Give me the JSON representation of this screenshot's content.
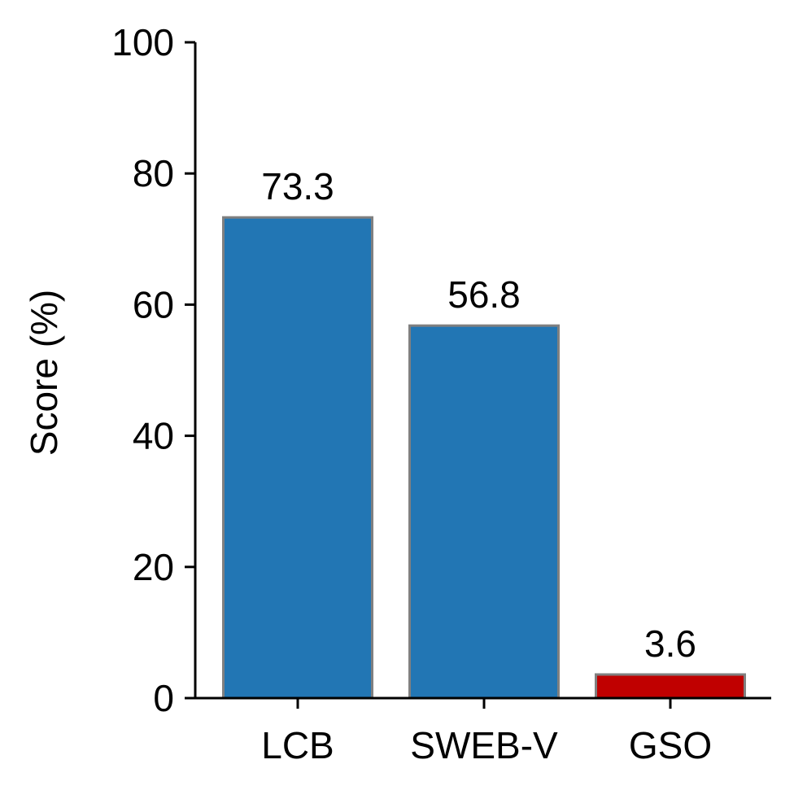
{
  "chart_data": {
    "type": "bar",
    "title": "",
    "xlabel": "",
    "ylabel": "Score (%)",
    "categories": [
      "LCB",
      "SWEB-V",
      "GSO"
    ],
    "values": [
      73.3,
      56.8,
      3.6
    ],
    "data_labels": [
      "73.3",
      "56.8",
      "3.6"
    ],
    "bar_colors": [
      "#2276b4",
      "#2276b4",
      "#c00000"
    ],
    "bar_edge_color": "#808080",
    "ylim": [
      0,
      100
    ],
    "yticks": [
      0,
      20,
      40,
      60,
      80,
      100
    ],
    "ytick_labels": [
      "0",
      "20",
      "40",
      "60",
      "80",
      "100"
    ],
    "grid": false,
    "legend": "none"
  }
}
